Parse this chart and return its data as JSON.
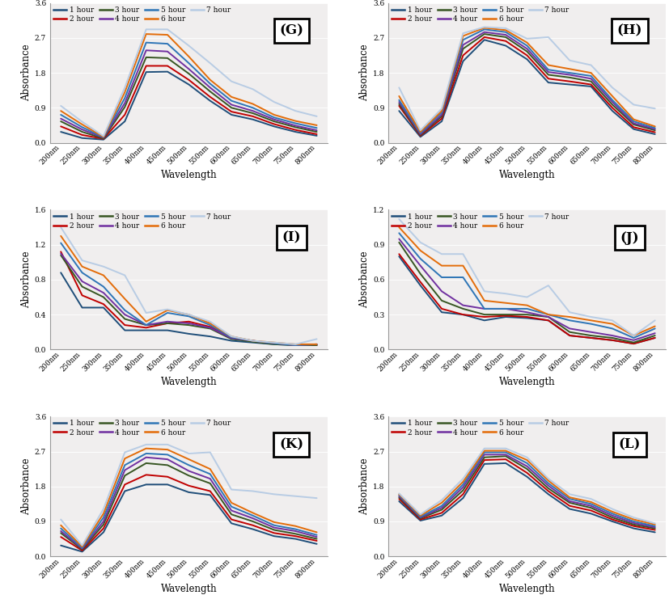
{
  "wavelengths": [
    200,
    250,
    300,
    350,
    400,
    450,
    500,
    550,
    600,
    650,
    700,
    750,
    800
  ],
  "panels": {
    "G": {
      "label": "(G)",
      "ylim": [
        0,
        3.6
      ],
      "yticks": [
        0,
        0.9,
        1.8,
        2.7,
        3.6
      ],
      "series": {
        "1 hour": [
          0.28,
          0.12,
          0.08,
          0.55,
          1.82,
          1.83,
          1.5,
          1.08,
          0.72,
          0.6,
          0.42,
          0.28,
          0.18
        ],
        "2 hour": [
          0.42,
          0.2,
          0.1,
          0.72,
          1.98,
          1.98,
          1.62,
          1.18,
          0.8,
          0.68,
          0.48,
          0.33,
          0.22
        ],
        "3 hour": [
          0.55,
          0.28,
          0.11,
          0.92,
          2.2,
          2.18,
          1.78,
          1.32,
          0.9,
          0.76,
          0.55,
          0.4,
          0.28
        ],
        "4 hour": [
          0.62,
          0.34,
          0.13,
          1.02,
          2.38,
          2.35,
          1.9,
          1.42,
          0.98,
          0.82,
          0.6,
          0.44,
          0.32
        ],
        "5 hour": [
          0.72,
          0.4,
          0.14,
          1.15,
          2.58,
          2.55,
          2.05,
          1.52,
          1.08,
          0.9,
          0.65,
          0.5,
          0.38
        ],
        "6 hour": [
          0.82,
          0.47,
          0.15,
          1.3,
          2.8,
          2.78,
          2.22,
          1.62,
          1.18,
          1.0,
          0.72,
          0.56,
          0.45
        ],
        "7 hour": [
          0.95,
          0.54,
          0.17,
          1.42,
          2.92,
          2.92,
          2.5,
          2.05,
          1.58,
          1.38,
          1.05,
          0.82,
          0.68
        ]
      }
    },
    "H": {
      "label": "(H)",
      "ylim": [
        0,
        3.6
      ],
      "yticks": [
        0,
        0.9,
        1.8,
        2.7,
        3.6
      ],
      "series": {
        "1 hour": [
          0.82,
          0.15,
          0.55,
          2.1,
          2.65,
          2.5,
          2.15,
          1.55,
          1.5,
          1.45,
          0.82,
          0.35,
          0.22
        ],
        "2 hour": [
          0.95,
          0.18,
          0.62,
          2.25,
          2.72,
          2.62,
          2.25,
          1.65,
          1.58,
          1.5,
          0.9,
          0.4,
          0.27
        ],
        "3 hour": [
          1.0,
          0.2,
          0.68,
          2.42,
          2.8,
          2.72,
          2.35,
          1.75,
          1.68,
          1.58,
          0.98,
          0.47,
          0.32
        ],
        "4 hour": [
          1.05,
          0.22,
          0.72,
          2.52,
          2.85,
          2.78,
          2.42,
          1.82,
          1.75,
          1.65,
          1.05,
          0.5,
          0.35
        ],
        "5 hour": [
          1.1,
          0.25,
          0.78,
          2.65,
          2.92,
          2.85,
          2.5,
          1.88,
          1.8,
          1.72,
          1.1,
          0.55,
          0.38
        ],
        "6 hour": [
          1.2,
          0.28,
          0.82,
          2.75,
          2.96,
          2.9,
          2.58,
          2.0,
          1.9,
          1.8,
          1.2,
          0.6,
          0.42
        ],
        "7 hour": [
          1.42,
          0.32,
          0.88,
          2.82,
          2.98,
          2.95,
          2.68,
          2.72,
          2.12,
          2.0,
          1.42,
          0.98,
          0.88
        ]
      }
    },
    "I": {
      "label": "(I)",
      "ylim": [
        0,
        1.6
      ],
      "yticks": [
        0,
        0.4,
        0.8,
        1.2,
        1.6
      ],
      "series": {
        "1 hour": [
          0.88,
          0.48,
          0.48,
          0.22,
          0.22,
          0.22,
          0.18,
          0.15,
          0.1,
          0.08,
          0.06,
          0.05,
          0.05
        ],
        "2 hour": [
          1.12,
          0.62,
          0.52,
          0.28,
          0.25,
          0.3,
          0.32,
          0.26,
          0.14,
          0.1,
          0.07,
          0.05,
          0.05
        ],
        "3 hour": [
          1.08,
          0.72,
          0.6,
          0.35,
          0.28,
          0.3,
          0.28,
          0.24,
          0.12,
          0.09,
          0.06,
          0.05,
          0.05
        ],
        "4 hour": [
          1.1,
          0.78,
          0.65,
          0.4,
          0.28,
          0.32,
          0.3,
          0.25,
          0.13,
          0.1,
          0.07,
          0.05,
          0.06
        ],
        "5 hour": [
          1.22,
          0.88,
          0.72,
          0.45,
          0.28,
          0.42,
          0.38,
          0.28,
          0.14,
          0.1,
          0.07,
          0.05,
          0.06
        ],
        "6 hour": [
          1.3,
          0.95,
          0.85,
          0.58,
          0.32,
          0.45,
          0.4,
          0.3,
          0.15,
          0.1,
          0.08,
          0.06,
          0.06
        ],
        "7 hour": [
          1.4,
          1.02,
          0.95,
          0.85,
          0.42,
          0.46,
          0.4,
          0.32,
          0.15,
          0.1,
          0.08,
          0.06,
          0.12
        ]
      }
    },
    "J": {
      "label": "(J)",
      "ylim": [
        0,
        1.2
      ],
      "yticks": [
        0,
        0.3,
        0.6,
        0.9,
        1.2
      ],
      "series": {
        "1 hour": [
          0.8,
          0.55,
          0.32,
          0.3,
          0.25,
          0.28,
          0.27,
          0.25,
          0.12,
          0.1,
          0.08,
          0.05,
          0.1
        ],
        "2 hour": [
          0.82,
          0.58,
          0.35,
          0.3,
          0.28,
          0.29,
          0.28,
          0.25,
          0.12,
          0.1,
          0.08,
          0.05,
          0.1
        ],
        "3 hour": [
          0.92,
          0.65,
          0.42,
          0.35,
          0.3,
          0.3,
          0.3,
          0.28,
          0.15,
          0.12,
          0.1,
          0.06,
          0.12
        ],
        "4 hour": [
          0.95,
          0.72,
          0.5,
          0.38,
          0.35,
          0.35,
          0.32,
          0.28,
          0.18,
          0.15,
          0.12,
          0.08,
          0.14
        ],
        "5 hour": [
          1.0,
          0.78,
          0.62,
          0.62,
          0.35,
          0.35,
          0.35,
          0.3,
          0.25,
          0.22,
          0.18,
          0.1,
          0.18
        ],
        "6 hour": [
          1.05,
          0.85,
          0.72,
          0.72,
          0.42,
          0.4,
          0.38,
          0.3,
          0.28,
          0.25,
          0.22,
          0.12,
          0.2
        ],
        "7 hour": [
          1.12,
          0.92,
          0.82,
          0.82,
          0.5,
          0.48,
          0.45,
          0.55,
          0.32,
          0.28,
          0.25,
          0.12,
          0.25
        ]
      }
    },
    "K": {
      "label": "(K)",
      "ylim": [
        0,
        3.6
      ],
      "yticks": [
        0,
        0.9,
        1.8,
        2.7,
        3.6
      ],
      "series": {
        "1 hour": [
          0.28,
          0.12,
          0.62,
          1.68,
          1.85,
          1.85,
          1.65,
          1.58,
          0.85,
          0.7,
          0.52,
          0.45,
          0.32
        ],
        "2 hour": [
          0.5,
          0.15,
          0.72,
          1.85,
          2.1,
          2.05,
          1.82,
          1.68,
          0.95,
          0.8,
          0.6,
          0.52,
          0.4
        ],
        "3 hour": [
          0.6,
          0.18,
          0.82,
          2.08,
          2.4,
          2.35,
          2.08,
          1.88,
          1.08,
          0.9,
          0.68,
          0.58,
          0.45
        ],
        "4 hour": [
          0.65,
          0.2,
          0.9,
          2.22,
          2.55,
          2.5,
          2.2,
          2.0,
          1.18,
          0.98,
          0.74,
          0.65,
          0.5
        ],
        "5 hour": [
          0.72,
          0.22,
          1.0,
          2.35,
          2.65,
          2.62,
          2.35,
          2.12,
          1.28,
          1.05,
          0.8,
          0.7,
          0.55
        ],
        "6 hour": [
          0.8,
          0.25,
          1.1,
          2.52,
          2.78,
          2.75,
          2.5,
          2.25,
          1.38,
          1.12,
          0.88,
          0.78,
          0.62
        ],
        "7 hour": [
          0.95,
          0.28,
          1.22,
          2.68,
          2.88,
          2.88,
          2.65,
          2.68,
          1.72,
          1.68,
          1.6,
          1.55,
          1.5
        ]
      }
    },
    "L": {
      "label": "(L)",
      "ylim": [
        0,
        3.6
      ],
      "yticks": [
        0,
        0.9,
        1.8,
        2.7,
        3.6
      ],
      "series": {
        "1 hour": [
          1.42,
          0.92,
          1.05,
          1.5,
          2.38,
          2.4,
          2.05,
          1.6,
          1.22,
          1.1,
          0.9,
          0.72,
          0.62
        ],
        "2 hour": [
          1.48,
          0.95,
          1.12,
          1.6,
          2.48,
          2.5,
          2.15,
          1.68,
          1.3,
          1.18,
          0.95,
          0.78,
          0.68
        ],
        "3 hour": [
          1.52,
          0.98,
          1.2,
          1.7,
          2.55,
          2.58,
          2.25,
          1.75,
          1.38,
          1.25,
          1.0,
          0.82,
          0.72
        ],
        "4 hour": [
          1.55,
          1.0,
          1.25,
          1.78,
          2.62,
          2.62,
          2.32,
          1.82,
          1.42,
          1.3,
          1.05,
          0.86,
          0.75
        ],
        "5 hour": [
          1.58,
          1.02,
          1.3,
          1.85,
          2.68,
          2.68,
          2.4,
          1.88,
          1.48,
          1.35,
          1.1,
          0.9,
          0.78
        ],
        "6 hour": [
          1.6,
          1.05,
          1.38,
          1.92,
          2.72,
          2.72,
          2.48,
          1.95,
          1.52,
          1.4,
          1.15,
          0.95,
          0.82
        ],
        "7 hour": [
          1.62,
          1.08,
          1.45,
          2.0,
          2.78,
          2.78,
          2.55,
          2.0,
          1.6,
          1.48,
          1.22,
          1.0,
          0.85
        ]
      }
    }
  },
  "colors": {
    "1 hour": "#1f4e79",
    "2 hour": "#c00000",
    "3 hour": "#375623",
    "4 hour": "#7030a0",
    "5 hour": "#2e75b6",
    "6 hour": "#e36c09",
    "7 hour": "#b8cce4"
  },
  "hour_labels": [
    "1 hour",
    "2 hour",
    "3 hour",
    "4 hour",
    "5 hour",
    "6 hour",
    "7 hour"
  ],
  "panel_order": [
    "G",
    "H",
    "I",
    "J",
    "K",
    "L"
  ],
  "xtick_labels": [
    "200nm",
    "250nm",
    "300nm",
    "350nm",
    "400nm",
    "450nm",
    "500nm",
    "550nm",
    "600nm",
    "650nm",
    "700nm",
    "750nm",
    "800nm"
  ],
  "xlabel": "Wavelength",
  "ylabel": "Absorbance",
  "line_width": 1.4,
  "bg_color": "#f0eeee"
}
